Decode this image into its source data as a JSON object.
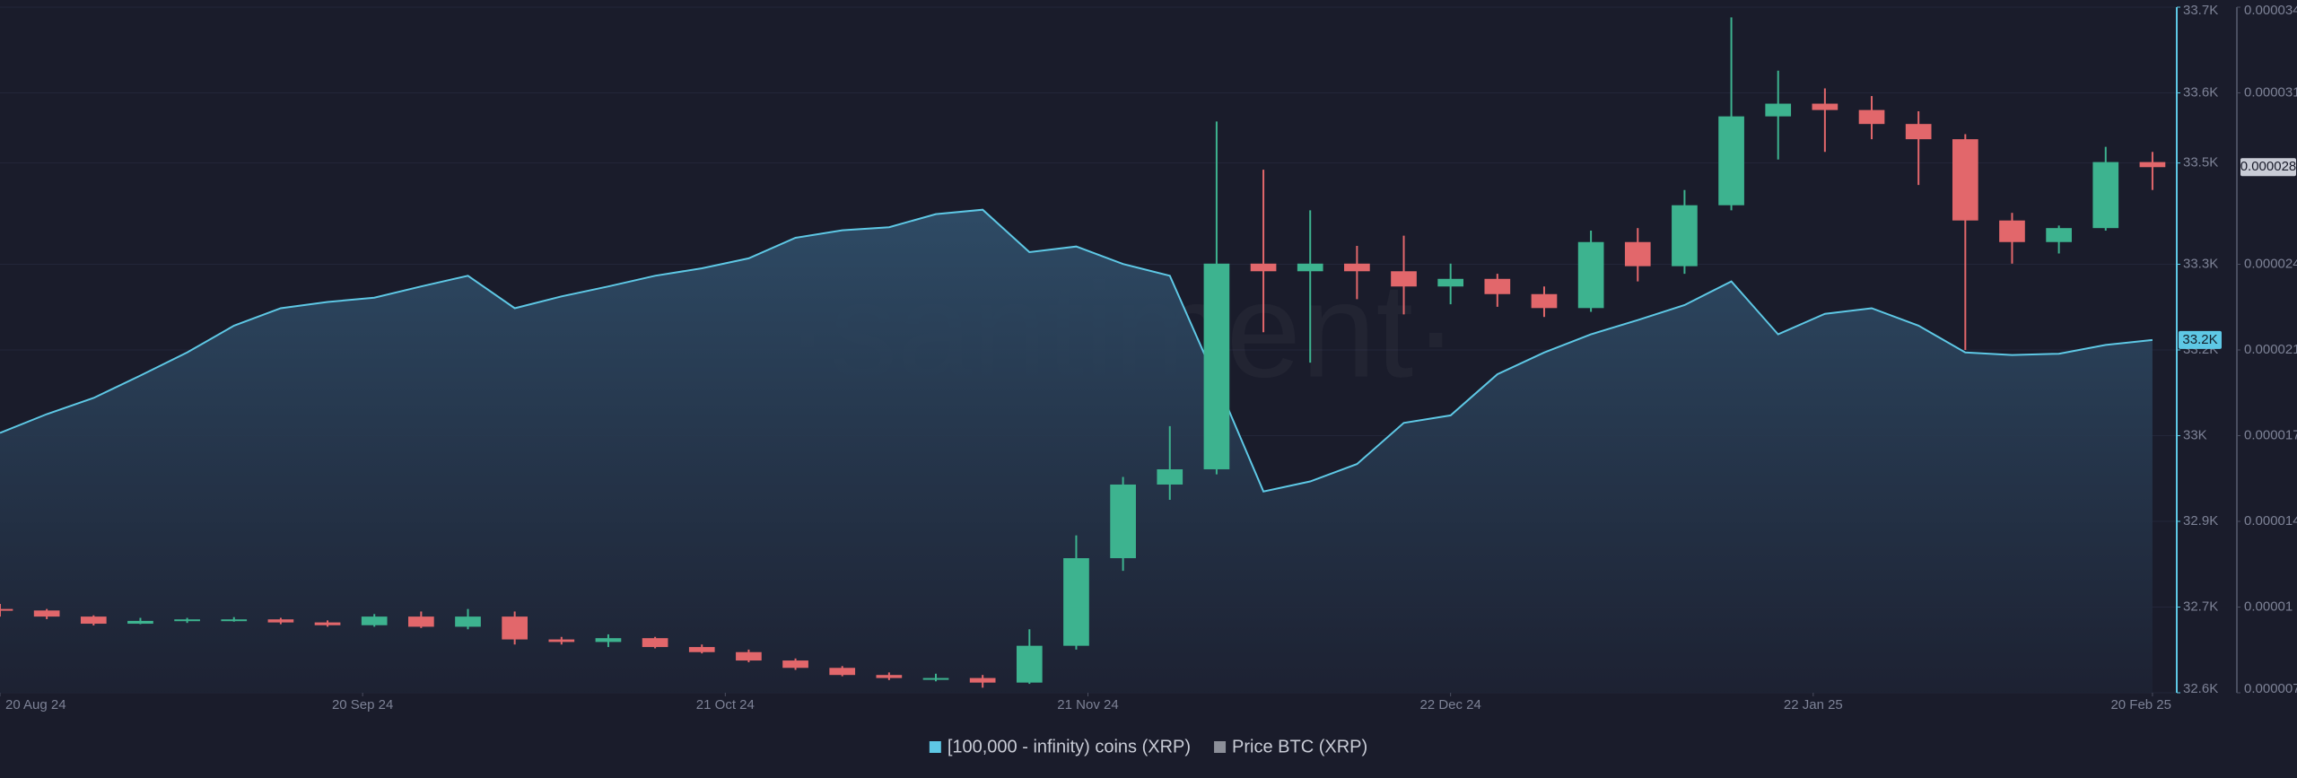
{
  "chart_data": {
    "type": "combo",
    "watermark": "·santiment·",
    "x": [
      "2024-08-20",
      "2024-08-24",
      "2024-08-28",
      "2024-09-01",
      "2024-09-05",
      "2024-09-09",
      "2024-09-13",
      "2024-09-17",
      "2024-09-21",
      "2024-09-25",
      "2024-09-29",
      "2024-10-03",
      "2024-10-07",
      "2024-10-11",
      "2024-10-15",
      "2024-10-19",
      "2024-10-23",
      "2024-10-27",
      "2024-10-31",
      "2024-11-04",
      "2024-11-08",
      "2024-11-12",
      "2024-11-16",
      "2024-11-20",
      "2024-11-24",
      "2024-11-28",
      "2024-12-02",
      "2024-12-06",
      "2024-12-10",
      "2024-12-14",
      "2024-12-18",
      "2024-12-22",
      "2024-12-26",
      "2024-12-30",
      "2025-01-03",
      "2025-01-07",
      "2025-01-11",
      "2025-01-15",
      "2025-01-19",
      "2025-01-23",
      "2025-01-27",
      "2025-01-31",
      "2025-02-04",
      "2025-02-08",
      "2025-02-12",
      "2025-02-16",
      "2025-02-20"
    ],
    "xlim": [
      "2024-08-20",
      "2025-02-22"
    ],
    "xticks": [
      {
        "value": "2024-08-20",
        "label": "20 Aug 24"
      },
      {
        "value": "2024-09-20",
        "label": "20 Sep 24"
      },
      {
        "value": "2024-10-21",
        "label": "21 Oct 24"
      },
      {
        "value": "2024-11-21",
        "label": "21 Nov 24"
      },
      {
        "value": "2024-12-22",
        "label": "22 Dec 24"
      },
      {
        "value": "2025-01-22",
        "label": "22 Jan 25"
      },
      {
        "value": "2025-02-20",
        "label": "20 Feb 25"
      }
    ],
    "ylim": [
      32600,
      33700
    ],
    "yticks": [
      {
        "value": 33700,
        "label": "33.7K"
      },
      {
        "value": 33562.5,
        "label": "33.6K"
      },
      {
        "value": 33450,
        "label": "33.5K"
      },
      {
        "value": 33287.5,
        "label": "33.3K"
      },
      {
        "value": 33150,
        "label": "33.2K"
      },
      {
        "value": 33012.5,
        "label": "33K"
      },
      {
        "value": 32875,
        "label": "32.9K"
      },
      {
        "value": 32737.5,
        "label": "32.7K"
      },
      {
        "value": 32600,
        "label": "32.6K"
      }
    ],
    "y2lim": [
      7e-06,
      3.4e-05
    ],
    "y2ticks": [
      {
        "value": 3.4e-05,
        "label": "0.000034"
      },
      {
        "value": 3.0625e-05,
        "label": "0.000031"
      },
      {
        "value": 2.3875e-05,
        "label": "0.000024"
      },
      {
        "value": 2.05e-05,
        "label": "0.000021"
      },
      {
        "value": 1.7125e-05,
        "label": "0.000017"
      },
      {
        "value": 1.375e-05,
        "label": "0.000014"
      },
      {
        "value": 1.0375e-05,
        "label": "0.00001"
      },
      {
        "value": 7e-06,
        "label": "0.000007"
      }
    ],
    "y_badge": {
      "value": 33166,
      "label": "33.2K"
    },
    "y2_badge": {
      "value": 2.77e-05,
      "label": "0.000028"
    },
    "grid": true,
    "series": [
      {
        "name": "[100,000  - infinity) coins (XRP)",
        "type": "area",
        "axis": "y",
        "color": "#5ec8e5",
        "values": [
          33017,
          33047,
          33073,
          33109,
          33146,
          33189,
          33217,
          33227,
          33234,
          33252,
          33269,
          33217,
          33236,
          33252,
          33269,
          33281,
          33297,
          33330,
          33342,
          33347,
          33368,
          33375,
          33307,
          33316,
          33288,
          33269,
          33099,
          32923,
          32939,
          32967,
          33033,
          33045,
          33111,
          33146,
          33175,
          33198,
          33222,
          33260,
          33175,
          33208,
          33217,
          33189,
          33146,
          33142,
          33144,
          33158,
          33166
        ]
      },
      {
        "name": "Price BTC (XRP)",
        "type": "candlestick",
        "axis": "y2",
        "color": "#8c8f99",
        "up_color": "#3db38f",
        "down_color": "#e2676b",
        "open": [
          1.03e-05,
          1.024e-05,
          1e-05,
          9.72e-06,
          9.83e-06,
          9.89e-06,
          9.89e-06,
          9.77e-06,
          9.66e-06,
          1e-05,
          9.6e-06,
          1e-05,
          9.1e-06,
          9e-06,
          9.15e-06,
          8.8e-06,
          8.6e-06,
          8.27e-06,
          7.98e-06,
          7.7e-06,
          7.58e-06,
          7.58e-06,
          7.4e-06,
          8.85e-06,
          1.23e-05,
          1.52e-05,
          1.58e-05,
          2.39e-05,
          2.36e-05,
          2.39e-05,
          2.36e-05,
          2.3e-05,
          2.33e-05,
          2.27e-05,
          2.215e-05,
          2.475e-05,
          2.38e-05,
          2.62e-05,
          2.97e-05,
          3.02e-05,
          2.995e-05,
          2.94e-05,
          2.88e-05,
          2.56e-05,
          2.475e-05,
          2.53e-05,
          2.79e-05
        ],
        "high": [
          1.05e-05,
          1.03e-05,
          1.005e-05,
          9.95e-06,
          9.95e-06,
          9.98e-06,
          9.95e-06,
          9.85e-06,
          1.01e-05,
          1.02e-05,
          1.03e-05,
          1.02e-05,
          9.2e-06,
          9.3e-06,
          9.2e-06,
          8.9e-06,
          8.7e-06,
          8.35e-06,
          8.05e-06,
          7.8e-06,
          7.75e-06,
          7.7e-06,
          9.5e-06,
          1.32e-05,
          1.55e-05,
          1.75e-05,
          2.95e-05,
          2.76e-05,
          2.6e-05,
          2.46e-05,
          2.5e-05,
          2.39e-05,
          2.35e-05,
          2.3e-05,
          2.52e-05,
          2.53e-05,
          2.68e-05,
          3.36e-05,
          3.15e-05,
          3.08e-05,
          3.05e-05,
          2.99e-05,
          2.9e-05,
          2.59e-05,
          2.54e-05,
          2.85e-05,
          2.83e-05
        ],
        "low": [
          1e-05,
          9.9e-06,
          9.65e-06,
          9.7e-06,
          9.75e-06,
          9.8e-06,
          9.7e-06,
          9.6e-06,
          9.6e-06,
          9.55e-06,
          9.5e-06,
          8.9e-06,
          8.9e-06,
          8.8e-06,
          8.75e-06,
          8.55e-06,
          8.2e-06,
          7.9e-06,
          7.65e-06,
          7.5e-06,
          7.45e-06,
          7.2e-06,
          7.35e-06,
          8.7e-06,
          1.18e-05,
          1.46e-05,
          1.56e-05,
          2.12e-05,
          2e-05,
          2.25e-05,
          2.19e-05,
          2.23e-05,
          2.22e-05,
          2.18e-05,
          2.2e-05,
          2.32e-05,
          2.35e-05,
          2.6e-05,
          2.8e-05,
          2.83e-05,
          2.88e-05,
          2.7e-05,
          2.05e-05,
          2.39e-05,
          2.43e-05,
          2.52e-05,
          2.68e-05
        ],
        "close": [
          1.024e-05,
          1e-05,
          9.72e-06,
          9.83e-06,
          9.89e-06,
          9.89e-06,
          9.77e-06,
          9.66e-06,
          1e-05,
          9.6e-06,
          1e-05,
          9.1e-06,
          9e-06,
          9.15e-06,
          8.8e-06,
          8.6e-06,
          8.27e-06,
          7.98e-06,
          7.7e-06,
          7.58e-06,
          7.58e-06,
          7.4e-06,
          8.85e-06,
          1.23e-05,
          1.52e-05,
          1.58e-05,
          2.39e-05,
          2.36e-05,
          2.39e-05,
          2.36e-05,
          2.3e-05,
          2.33e-05,
          2.27e-05,
          2.215e-05,
          2.475e-05,
          2.38e-05,
          2.62e-05,
          2.97e-05,
          3.02e-05,
          2.995e-05,
          2.94e-05,
          2.88e-05,
          2.56e-05,
          2.475e-05,
          2.53e-05,
          2.79e-05,
          2.77e-05
        ]
      }
    ]
  }
}
